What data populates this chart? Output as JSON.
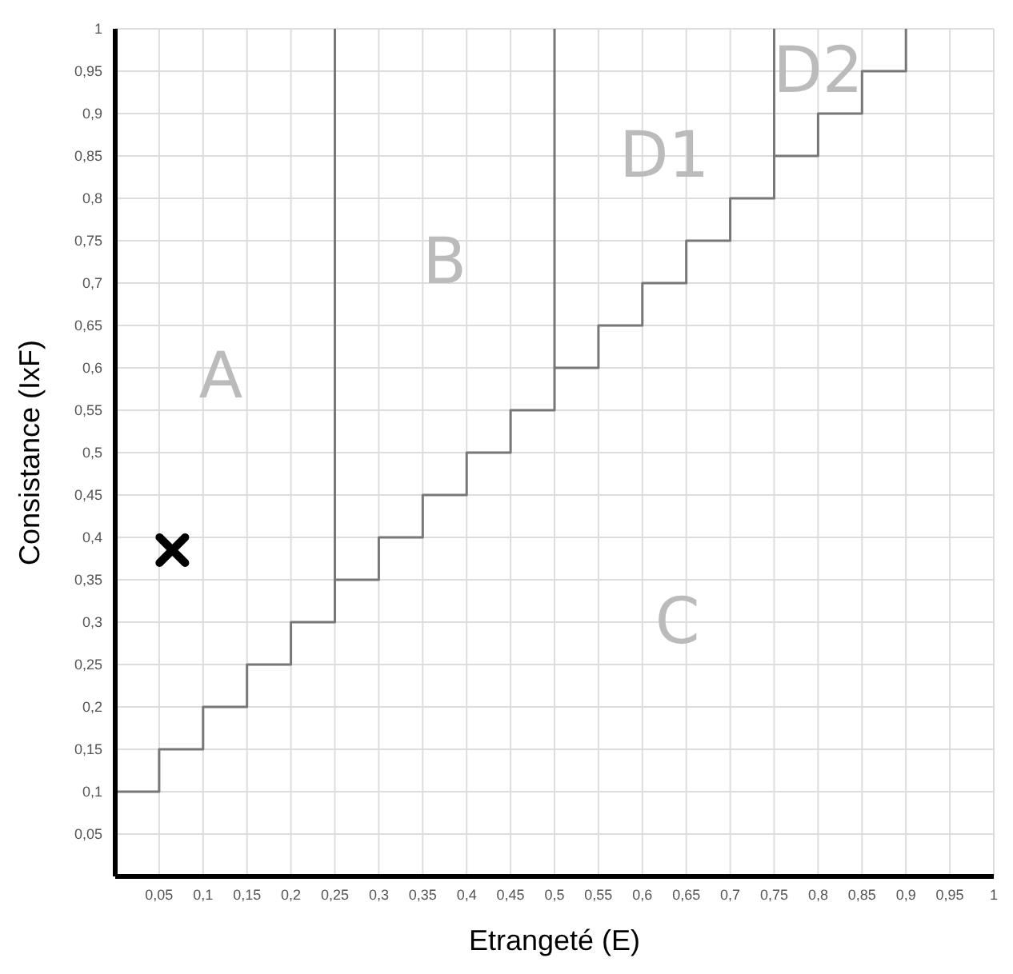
{
  "chart_data": {
    "type": "step",
    "xlabel": "Etrangeté (E)",
    "ylabel": "Consistance (IxF)",
    "xlim": [
      0,
      1
    ],
    "ylim": [
      0,
      1
    ],
    "xticks": [
      {
        "value": 0,
        "label": null
      },
      {
        "value": 0.05,
        "label": "0,05"
      },
      {
        "value": 0.1,
        "label": "0,1"
      },
      {
        "value": 0.15,
        "label": "0,15"
      },
      {
        "value": 0.2,
        "label": "0,2"
      },
      {
        "value": 0.25,
        "label": "0,25"
      },
      {
        "value": 0.3,
        "label": "0,3"
      },
      {
        "value": 0.35,
        "label": "0,35"
      },
      {
        "value": 0.4,
        "label": "0,4"
      },
      {
        "value": 0.45,
        "label": "0,45"
      },
      {
        "value": 0.5,
        "label": "0,5"
      },
      {
        "value": 0.55,
        "label": "0,55"
      },
      {
        "value": 0.6,
        "label": "0,6"
      },
      {
        "value": 0.65,
        "label": "0,65"
      },
      {
        "value": 0.7,
        "label": "0,7"
      },
      {
        "value": 0.75,
        "label": "0,75"
      },
      {
        "value": 0.8,
        "label": "0,8"
      },
      {
        "value": 0.85,
        "label": "0,85"
      },
      {
        "value": 0.9,
        "label": "0,9"
      },
      {
        "value": 0.95,
        "label": "0,95"
      },
      1
    ],
    "yticks": [
      {
        "value": 0,
        "label": null
      },
      {
        "value": 0.05,
        "label": "0,05"
      },
      {
        "value": 0.1,
        "label": "0,1"
      },
      {
        "value": 0.15,
        "label": "0,15"
      },
      {
        "value": 0.2,
        "label": "0,2"
      },
      {
        "value": 0.25,
        "label": "0,25"
      },
      {
        "value": 0.3,
        "label": "0,3"
      },
      {
        "value": 0.35,
        "label": "0,35"
      },
      {
        "value": 0.4,
        "label": "0,4"
      },
      {
        "value": 0.45,
        "label": "0,45"
      },
      {
        "value": 0.5,
        "label": "0,5"
      },
      {
        "value": 0.55,
        "label": "0,55"
      },
      {
        "value": 0.6,
        "label": "0,6"
      },
      {
        "value": 0.65,
        "label": "0,65"
      },
      {
        "value": 0.7,
        "label": "0,7"
      },
      {
        "value": 0.75,
        "label": "0,75"
      },
      {
        "value": 0.8,
        "label": "0,8"
      },
      {
        "value": 0.85,
        "label": "0,85"
      },
      {
        "value": 0.9,
        "label": "0,9"
      },
      {
        "value": 0.95,
        "label": "0,95"
      },
      1
    ],
    "grid": true,
    "series": [
      {
        "color": "#777777",
        "x": [
          0,
          0.05,
          0.1,
          0.15,
          0.2,
          0.25,
          0.3,
          0.35,
          0.4,
          0.45,
          0.5,
          0.55,
          0.6,
          0.65,
          0.7,
          0.75,
          0.8,
          0.85,
          0.9
        ],
        "values": [
          0.1,
          0.15,
          0.2,
          0.25,
          0.3,
          0.35,
          0.4,
          0.45,
          0.5,
          0.55,
          0.6,
          0.65,
          0.7,
          0.75,
          0.8,
          0.85,
          0.9,
          0.95,
          1
        ]
      },
      {
        "type": "line",
        "color": "#777777",
        "x": [
          0.25,
          0.25
        ],
        "values": [
          0.35,
          1
        ]
      },
      {
        "type": "line",
        "color": "#777777",
        "x": [
          0.5,
          0.5
        ],
        "values": [
          0.6,
          1
        ]
      },
      {
        "type": "line",
        "color": "#777777",
        "x": [
          0.75,
          0.75
        ],
        "values": [
          0.85,
          1
        ]
      },
      {
        "type": "scatter",
        "color": "#000000",
        "marker": "cross",
        "x": [
          0.065
        ],
        "values": [
          0.385
        ]
      }
    ],
    "annotations": [
      "A",
      "B",
      "C",
      "D1",
      "D2"
    ]
  }
}
